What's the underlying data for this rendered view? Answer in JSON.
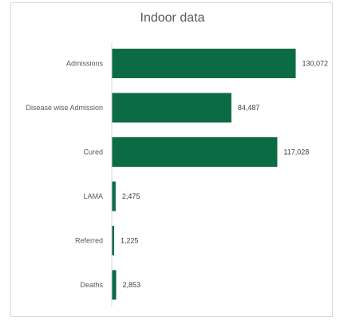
{
  "chart_data": {
    "type": "bar",
    "orientation": "horizontal",
    "title": "Indoor data",
    "categories": [
      "Admissions",
      "Disease wise Admission",
      "Cured",
      "LAMA",
      "Referred",
      "Deaths"
    ],
    "values": [
      130072,
      84487,
      117028,
      2475,
      1225,
      2853
    ],
    "value_labels": [
      "130,072",
      "84,487",
      "117,028",
      "2,475",
      "1,225",
      "2,853"
    ],
    "bar_color": "#0b6b45",
    "xlabel": "",
    "ylabel": "",
    "xlim": [
      0,
      130072
    ],
    "grid": false,
    "legend": "none"
  }
}
